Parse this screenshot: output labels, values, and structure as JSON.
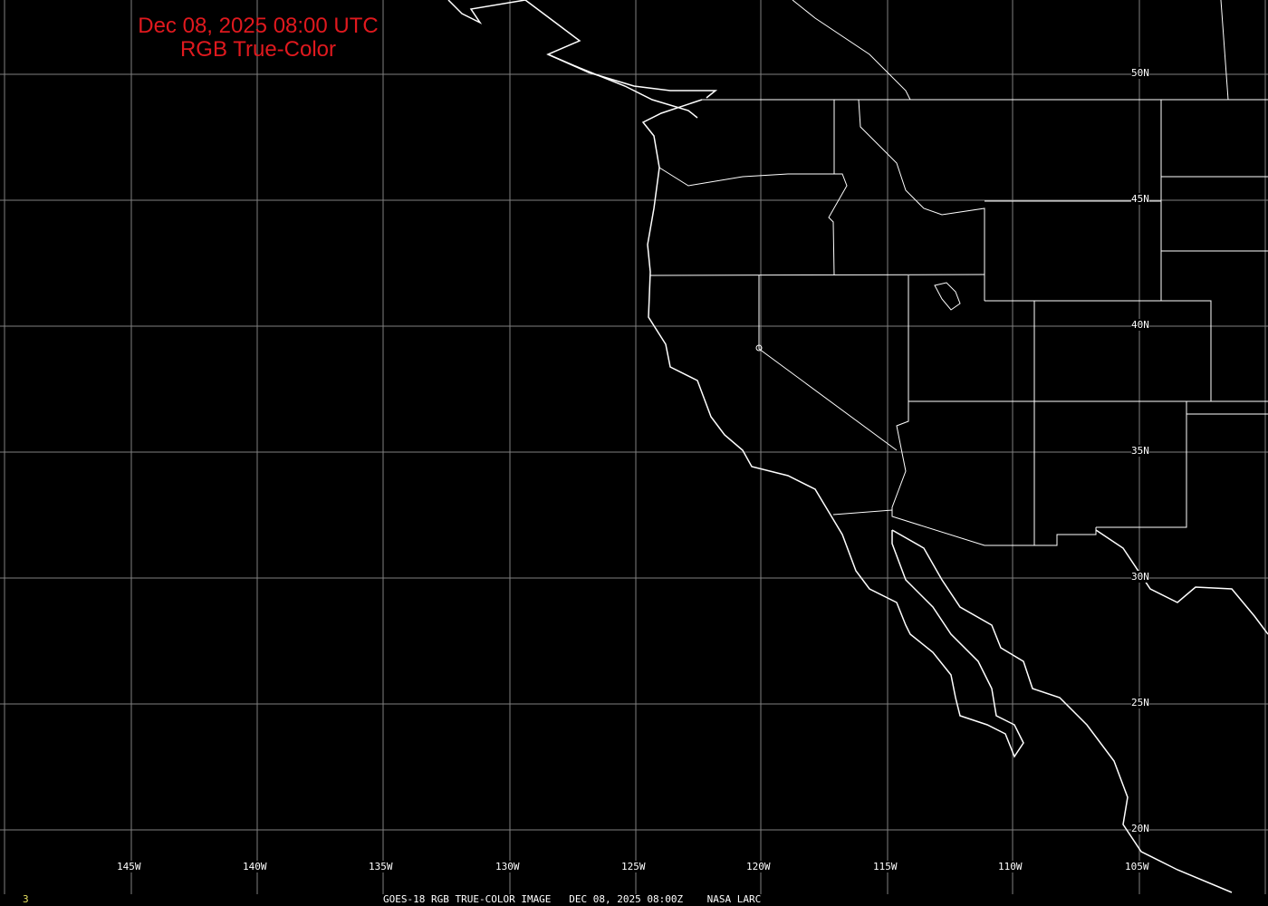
{
  "title": {
    "line1": "Dec 08, 2025 08:00 UTC",
    "line2": "RGB True-Color"
  },
  "caption": "GOES-18 RGB TRUE-COLOR IMAGE   DEC 08, 2025 08:00Z    NASA LARC",
  "frame_number": "3",
  "longitude_labels": [
    "145W",
    "140W",
    "135W",
    "130W",
    "125W",
    "120W",
    "115W",
    "110W",
    "105W"
  ],
  "latitude_labels": [
    "50N",
    "45N",
    "40N",
    "35N",
    "30N",
    "25N",
    "20N"
  ],
  "colors": {
    "title": "#e0191e",
    "grid": "#808080",
    "coastline": "#ffffff",
    "background": "#000000",
    "frame_number": "#e6e060"
  }
}
